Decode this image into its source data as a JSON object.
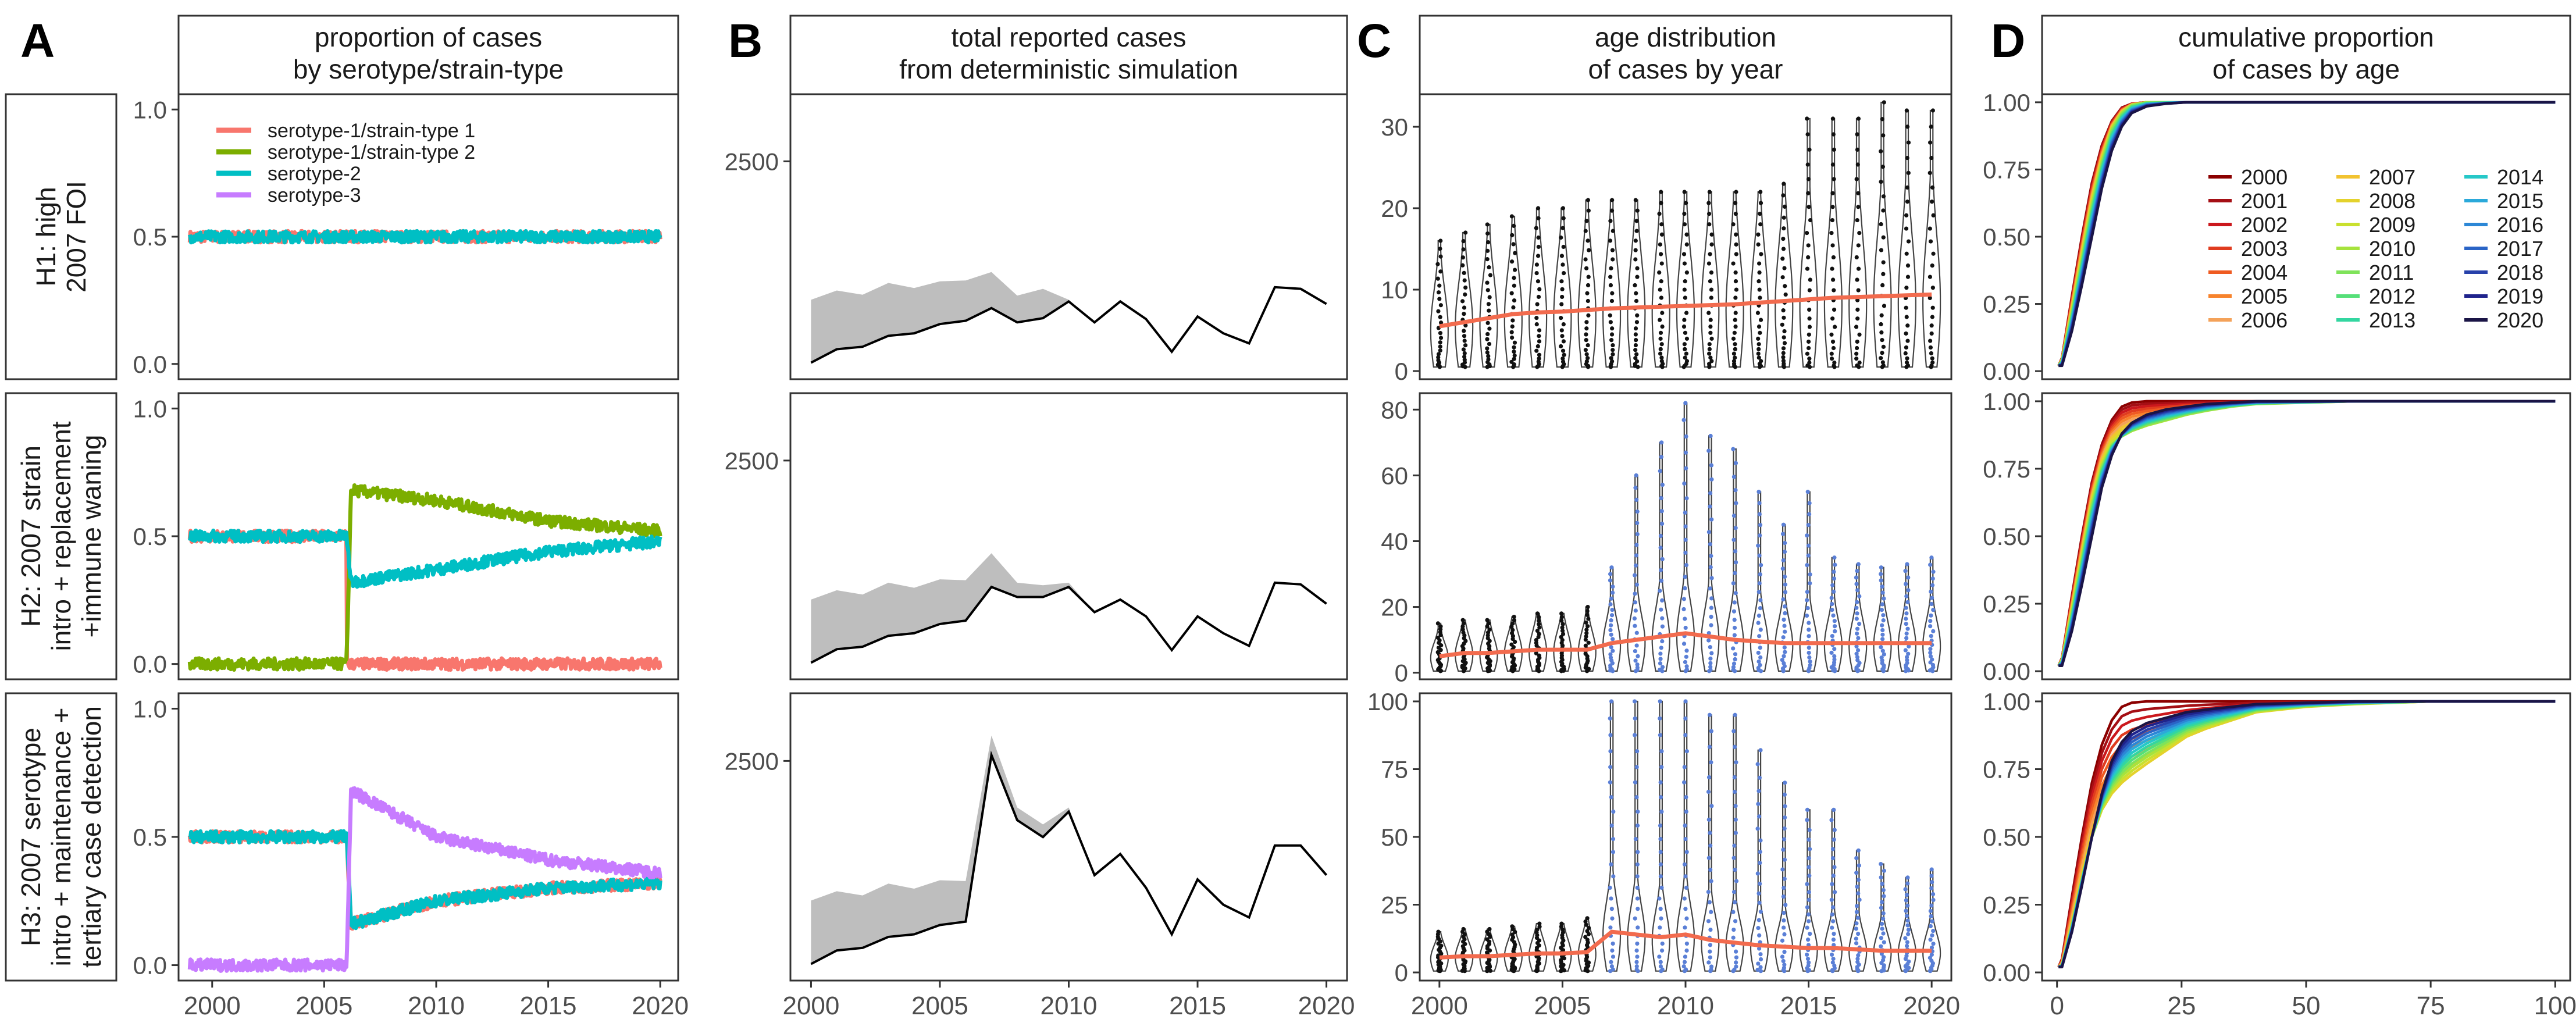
{
  "panel_letters": [
    "A",
    "B",
    "C",
    "D"
  ],
  "column_titles": [
    [
      "proportion of cases",
      "by serotype/strain-type"
    ],
    [
      "total reported cases",
      "from deterministic simulation"
    ],
    [
      "age distribution",
      "of cases by year"
    ],
    [
      "cumulative proportion",
      "of cases by age"
    ]
  ],
  "row_labels": [
    [
      "H1: high",
      "2007 FOI"
    ],
    [
      "H2: 2007 strain",
      "intro + replacement",
      "+immune waning"
    ],
    [
      "H3: 2007 serotype",
      "intro + maintenance +",
      "tertiary case detection"
    ]
  ],
  "legend_A": [
    {
      "label": "serotype-1/strain-type 1",
      "color": "#F8766D"
    },
    {
      "label": "serotype-1/strain-type 2",
      "color": "#7CAE00"
    },
    {
      "label": "serotype-2",
      "color": "#00BFC4"
    },
    {
      "label": "serotype-3",
      "color": "#C77CFF"
    }
  ],
  "legend_D": {
    "years": [
      "2000",
      "2001",
      "2002",
      "2003",
      "2004",
      "2005",
      "2006",
      "2007",
      "2008",
      "2009",
      "2010",
      "2011",
      "2012",
      "2013",
      "2014",
      "2015",
      "2016",
      "2017",
      "2018",
      "2019",
      "2020"
    ],
    "colors": [
      "#8B0000",
      "#A50F15",
      "#CB181D",
      "#E03C1F",
      "#EF5B22",
      "#F7832C",
      "#F4A259",
      "#F2C330",
      "#E4D22C",
      "#C9E02E",
      "#A6E33D",
      "#7FE35A",
      "#55DF78",
      "#33D6A0",
      "#26C8C8",
      "#2BA9DA",
      "#2C87D6",
      "#2A64C6",
      "#2741AA",
      "#1F238C",
      "#1A1446"
    ]
  },
  "chart_data": [
    {
      "id": "A",
      "type": "line",
      "title": "proportion of cases by serotype/strain-type",
      "xlim": [
        1998.5,
        2020.8
      ],
      "ylim": [
        -0.06,
        1.06
      ],
      "x_ticks": [
        "2000",
        "2005",
        "2010",
        "2015",
        "2020"
      ],
      "y_ticks": [
        "0.0",
        "0.5",
        "1.0"
      ],
      "rows": [
        {
          "row": "H1",
          "series": [
            {
              "name": "serotype-1/strain-type 1",
              "x": [
                1999,
                2020
              ],
              "y": [
                0.5,
                0.5
              ]
            },
            {
              "name": "serotype-2",
              "x": [
                1999,
                2020
              ],
              "y": [
                0.5,
                0.5
              ]
            }
          ]
        },
        {
          "row": "H2",
          "series": [
            {
              "name": "serotype-1/strain-type 1",
              "x": [
                1999,
                2006,
                2006,
                2020
              ],
              "y": [
                0.5,
                0.5,
                0.0,
                0.0
              ]
            },
            {
              "name": "serotype-1/strain-type 2",
              "x": [
                1999,
                2006,
                2006.2,
                2010,
                2015,
                2020
              ],
              "y": [
                0.0,
                0.0,
                0.68,
                0.64,
                0.56,
                0.52
              ]
            },
            {
              "name": "serotype-2",
              "x": [
                1999,
                2006,
                2006.2,
                2010,
                2015,
                2020
              ],
              "y": [
                0.5,
                0.5,
                0.32,
                0.37,
                0.44,
                0.48
              ]
            }
          ]
        },
        {
          "row": "H3",
          "series": [
            {
              "name": "serotype-1/strain-type 1",
              "x": [
                1999,
                2006,
                2006.2,
                2010,
                2015,
                2020
              ],
              "y": [
                0.5,
                0.5,
                0.16,
                0.25,
                0.3,
                0.32
              ]
            },
            {
              "name": "serotype-2",
              "x": [
                1999,
                2006,
                2006.2,
                2010,
                2015,
                2020
              ],
              "y": [
                0.5,
                0.5,
                0.16,
                0.25,
                0.3,
                0.32
              ]
            },
            {
              "name": "serotype-3",
              "x": [
                1999,
                2006,
                2006.2,
                2010,
                2015,
                2020
              ],
              "y": [
                0.0,
                0.0,
                0.68,
                0.5,
                0.41,
                0.36
              ]
            }
          ]
        }
      ]
    },
    {
      "id": "B",
      "type": "line",
      "title": "total reported cases from deterministic simulation",
      "xlim": [
        1999.2,
        2020.8
      ],
      "ylim": [
        0,
        3300
      ],
      "x_ticks": [
        "2000",
        "2005",
        "2010",
        "2015",
        "2020"
      ],
      "y_ticks": [
        "2500"
      ],
      "x": [
        2000,
        2001,
        2002,
        2003,
        2004,
        2005,
        2006,
        2007,
        2008,
        2009,
        2010,
        2011,
        2012,
        2013,
        2014,
        2015,
        2016,
        2017,
        2018,
        2019,
        2020
      ],
      "rows": [
        {
          "row": "H1",
          "line": [
            100,
            260,
            290,
            420,
            450,
            560,
            600,
            750,
            580,
            630,
            830,
            580,
            830,
            620,
            230,
            650,
            450,
            330,
            1000,
            980,
            800
          ],
          "band_upper": [
            850,
            960,
            910,
            1050,
            990,
            1070,
            1080,
            1180,
            900,
            980,
            850,
            580,
            830,
            620,
            230,
            650,
            450,
            330,
            1000,
            980,
            800
          ]
        },
        {
          "row": "H2",
          "line": [
            100,
            260,
            290,
            420,
            450,
            560,
            600,
            1000,
            880,
            880,
            1000,
            700,
            850,
            650,
            250,
            650,
            450,
            300,
            1050,
            1030,
            800
          ],
          "band_upper": [
            850,
            960,
            910,
            1050,
            990,
            1090,
            1080,
            1400,
            1050,
            1020,
            1050,
            700,
            850,
            650,
            250,
            650,
            450,
            300,
            1050,
            1030,
            800
          ]
        },
        {
          "row": "H3",
          "line": [
            100,
            260,
            290,
            420,
            450,
            560,
            600,
            2570,
            1800,
            1600,
            1900,
            1150,
            1400,
            1000,
            450,
            1100,
            800,
            650,
            1500,
            1500,
            1150
          ],
          "band_upper": [
            850,
            960,
            910,
            1050,
            990,
            1090,
            1080,
            2800,
            1950,
            1750,
            1950,
            1150,
            1400,
            1000,
            450,
            1100,
            800,
            650,
            1500,
            1500,
            1150
          ]
        }
      ]
    },
    {
      "id": "C",
      "type": "violin",
      "title": "age distribution of cases by year",
      "xlim": [
        1999.2,
        2020.8
      ],
      "x_ticks": [
        "2000",
        "2005",
        "2010",
        "2015",
        "2020"
      ],
      "x": [
        2000,
        2001,
        2002,
        2003,
        2004,
        2005,
        2006,
        2007,
        2008,
        2009,
        2010,
        2011,
        2012,
        2013,
        2014,
        2015,
        2016,
        2017,
        2018,
        2019,
        2020
      ],
      "rows": [
        {
          "row": "H1",
          "ylim": [
            -1,
            34
          ],
          "y_ticks": [
            "0",
            "10",
            "20",
            "30"
          ],
          "median_line": [
            5.5,
            6,
            6.5,
            7,
            7.2,
            7.3,
            7.5,
            7.7,
            7.8,
            7.9,
            8,
            8.1,
            8.2,
            8.4,
            8.6,
            8.8,
            9,
            9.1,
            9.2,
            9.3,
            9.4
          ],
          "max": [
            16,
            17,
            18,
            19,
            20,
            20,
            21,
            21,
            21,
            22,
            22,
            22,
            22,
            22,
            23,
            31,
            31,
            31,
            33,
            32,
            32
          ]
        },
        {
          "row": "H2",
          "ylim": [
            -2,
            85
          ],
          "y_ticks": [
            "0",
            "20",
            "40",
            "60",
            "80"
          ],
          "median_line": [
            5,
            6,
            6,
            6.5,
            7,
            7,
            7,
            9,
            10,
            11,
            12,
            11,
            10,
            9.5,
            9,
            9,
            9,
            9,
            9,
            9,
            9
          ],
          "max": [
            15,
            16,
            16,
            17,
            18,
            18,
            20,
            32,
            60,
            70,
            82,
            72,
            68,
            55,
            45,
            55,
            35,
            33,
            32,
            33,
            35
          ]
        },
        {
          "row": "H3",
          "ylim": [
            -3,
            103
          ],
          "y_ticks": [
            "0",
            "25",
            "50",
            "75",
            "100"
          ],
          "median_line": [
            5.5,
            6,
            6,
            6.5,
            7,
            7,
            7.5,
            15,
            14,
            13,
            14,
            12,
            11,
            10,
            9.5,
            9,
            9,
            8.5,
            8,
            8,
            8
          ],
          "max": [
            15,
            16,
            16,
            17,
            18,
            18,
            20,
            100,
            100,
            100,
            100,
            95,
            95,
            82,
            70,
            60,
            60,
            45,
            40,
            35,
            38
          ]
        }
      ]
    },
    {
      "id": "D",
      "type": "line",
      "title": "cumulative proportion of cases by age",
      "xlim": [
        -3,
        103
      ],
      "ylim": [
        -0.03,
        1.03
      ],
      "x_ticks": [
        "0",
        "25",
        "50",
        "75",
        "100"
      ],
      "y_ticks": [
        "0.00",
        "0.25",
        "0.50",
        "0.75",
        "1.00"
      ],
      "x": [
        1,
        3,
        5,
        7,
        9,
        11,
        13,
        15,
        18,
        22,
        26,
        30,
        35,
        40,
        50,
        60,
        75,
        100
      ],
      "rows": [
        {
          "row": "H1",
          "series": [
            {
              "name": "2000",
              "y": [
                0.05,
                0.28,
                0.5,
                0.7,
                0.84,
                0.93,
                0.98,
                0.995,
                1,
                1,
                1,
                1,
                1,
                1,
                1,
                1,
                1,
                1
              ]
            },
            {
              "name": "2010",
              "y": [
                0.04,
                0.22,
                0.42,
                0.62,
                0.78,
                0.9,
                0.96,
                0.99,
                1,
                1,
                1,
                1,
                1,
                1,
                1,
                1,
                1,
                1
              ]
            },
            {
              "name": "2020",
              "y": [
                0.02,
                0.15,
                0.32,
                0.5,
                0.68,
                0.82,
                0.91,
                0.96,
                0.985,
                0.995,
                1,
                1,
                1,
                1,
                1,
                1,
                1,
                1
              ]
            }
          ]
        },
        {
          "row": "H2",
          "series": [
            {
              "name": "2000",
              "y": [
                0.05,
                0.28,
                0.5,
                0.7,
                0.84,
                0.93,
                0.98,
                0.995,
                1,
                1,
                1,
                1,
                1,
                1,
                1,
                1,
                1,
                1
              ]
            },
            {
              "name": "2010",
              "y": [
                0.04,
                0.22,
                0.42,
                0.62,
                0.76,
                0.84,
                0.87,
                0.89,
                0.91,
                0.93,
                0.95,
                0.965,
                0.98,
                0.99,
                0.995,
                1,
                1,
                1
              ]
            },
            {
              "name": "2020",
              "y": [
                0.02,
                0.15,
                0.32,
                0.5,
                0.68,
                0.8,
                0.88,
                0.92,
                0.95,
                0.97,
                0.98,
                0.99,
                0.995,
                1,
                1,
                1,
                1,
                1
              ]
            }
          ]
        },
        {
          "row": "H3",
          "series": [
            {
              "name": "2000",
              "y": [
                0.05,
                0.28,
                0.5,
                0.7,
                0.84,
                0.93,
                0.98,
                0.995,
                1,
                1,
                1,
                1,
                1,
                1,
                1,
                1,
                1,
                1
              ]
            },
            {
              "name": "2008",
              "y": [
                0.03,
                0.18,
                0.35,
                0.5,
                0.6,
                0.66,
                0.7,
                0.73,
                0.77,
                0.82,
                0.87,
                0.9,
                0.93,
                0.96,
                0.98,
                0.99,
                1,
                1
              ]
            },
            {
              "name": "2020",
              "y": [
                0.02,
                0.15,
                0.32,
                0.5,
                0.66,
                0.78,
                0.85,
                0.89,
                0.92,
                0.94,
                0.96,
                0.97,
                0.98,
                0.99,
                0.995,
                1,
                1,
                1
              ]
            }
          ]
        }
      ]
    }
  ]
}
